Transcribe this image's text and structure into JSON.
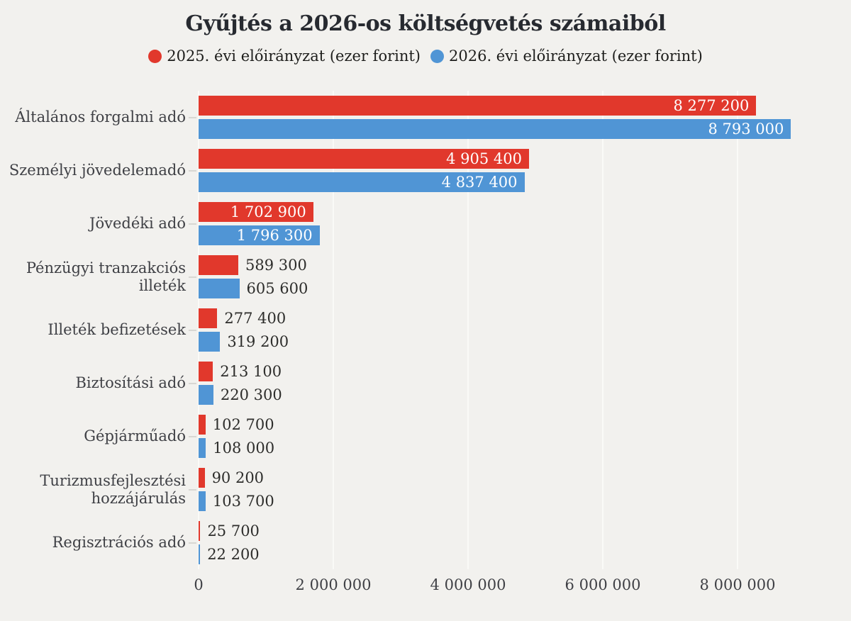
{
  "title": "Gyűjtés a 2026-os költségvetés számaiból",
  "legend": [
    {
      "label": "2025. évi előirányzat (ezer forint)",
      "color": "#e1382c"
    },
    {
      "label": "2026. évi előirányzat (ezer forint)",
      "color": "#5095d5"
    }
  ],
  "colors": {
    "background": "#f2f1ee",
    "red_series": "#e1382c",
    "blue_series": "#5095d5",
    "gridline": "#fafaf7",
    "title_text": "#272a30",
    "label_text": "#3f4045",
    "value_in_bar_text": "#ffffff",
    "value_out_bar_text": "#2d2d2b"
  },
  "chart_data": {
    "type": "bar",
    "orientation": "horizontal",
    "title": "Gyűjtés a 2026-os költségvetés számaiból",
    "xlabel": "",
    "ylabel": "",
    "grid": true,
    "legend_position": "top",
    "xlim": [
      0,
      9526000
    ],
    "x_ticks": [
      0,
      2000000,
      4000000,
      6000000,
      8000000
    ],
    "x_tick_labels": [
      "0",
      "2 000 000",
      "4 000 000",
      "6 000 000",
      "8 000 000"
    ],
    "categories": [
      "Általános forgalmi adó",
      "Személyi jövedelemadó",
      "Jövedéki adó",
      "Pénzügyi tranzakciós illeték",
      "Illeték befizetések",
      "Biztosítási adó",
      "Gépjárműadó",
      "Turizmusfejlesztési hozzájárulás",
      "Regisztrációs adó"
    ],
    "series": [
      {
        "name": "2025. évi előirányzat (ezer forint)",
        "color": "#e1382c",
        "values": [
          8277200,
          4905400,
          1702900,
          589300,
          277400,
          213100,
          102700,
          90200,
          25700
        ],
        "labels": [
          "8 277 200",
          "4 905 400",
          "1 702 900",
          "589 300",
          "277 400",
          "213 100",
          "102 700",
          "90 200",
          "25 700"
        ]
      },
      {
        "name": "2026. évi előirányzat (ezer forint)",
        "color": "#5095d5",
        "values": [
          8793000,
          4837400,
          1796300,
          605600,
          319200,
          220300,
          108000,
          103700,
          22200
        ],
        "labels": [
          "8 793 000",
          "4 837 400",
          "1 796 300",
          "605 600",
          "319 200",
          "220 300",
          "108 000",
          "103 700",
          "22 200"
        ]
      }
    ]
  }
}
